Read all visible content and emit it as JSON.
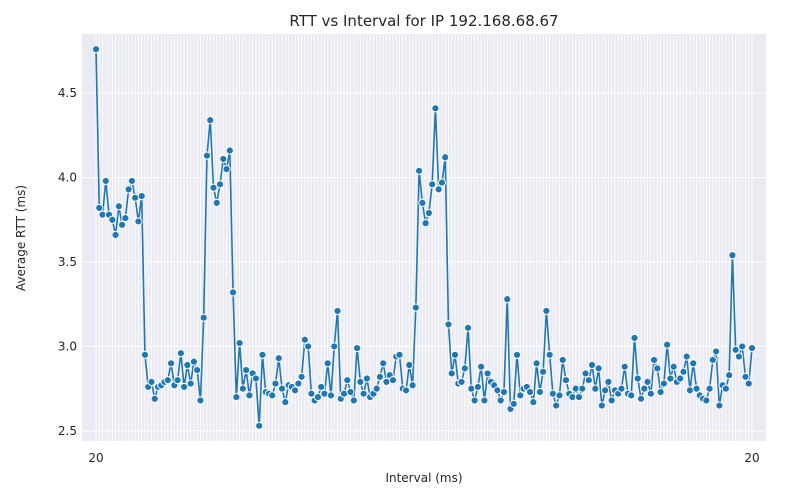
{
  "chart_data": {
    "type": "line",
    "title": "RTT vs Interval for IP 192.168.68.67",
    "xlabel": "Interval (ms)",
    "ylabel": "Average RTT (ms)",
    "ylim": [
      2.44,
      4.85
    ],
    "yticks": [
      2.5,
      3.0,
      3.5,
      4.0,
      4.5
    ],
    "ytick_labels": [
      "2.5",
      "3.0",
      "3.5",
      "4.0",
      "4.5"
    ],
    "xtick_labels_visible": [
      "20",
      "20"
    ],
    "x_categorical": true,
    "grid": true,
    "marker": "circle",
    "series_color": "#1f77b4",
    "plot_bg": "#eaeaf2",
    "series": [
      {
        "values": [
          4.76,
          3.82,
          3.78,
          3.98,
          3.78,
          3.75,
          3.66,
          3.83,
          3.72,
          3.76,
          3.93,
          3.98,
          3.88,
          3.74,
          3.89,
          2.95,
          2.76,
          2.79,
          2.69,
          2.76,
          2.77,
          2.79,
          2.8,
          2.9,
          2.77,
          2.8,
          2.96,
          2.76,
          2.89,
          2.78,
          2.91,
          2.86,
          2.68,
          3.17,
          4.13,
          4.34,
          3.94,
          3.85,
          3.96,
          4.11,
          4.05,
          4.16,
          3.32,
          2.7,
          3.02,
          2.75,
          2.86,
          2.71,
          2.84,
          2.81,
          2.53,
          2.95,
          2.73,
          2.72,
          2.71,
          2.78,
          2.93,
          2.75,
          2.67,
          2.77,
          2.76,
          2.74,
          2.78,
          2.82,
          3.04,
          3.0,
          2.72,
          2.68,
          2.7,
          2.76,
          2.72,
          2.9,
          2.71,
          3.0,
          3.21,
          2.69,
          2.72,
          2.8,
          2.73,
          2.68,
          2.99,
          2.79,
          2.72,
          2.81,
          2.7,
          2.72,
          2.75,
          2.82,
          2.9,
          2.79,
          2.83,
          2.8,
          2.94,
          2.95,
          2.75,
          2.74,
          2.89,
          2.77,
          3.23,
          4.04,
          3.85,
          3.73,
          3.79,
          3.96,
          4.41,
          3.93,
          3.97,
          4.12,
          3.13,
          2.84,
          2.95,
          2.78,
          2.79,
          2.87,
          3.11,
          2.75,
          2.68,
          2.76,
          2.88,
          2.68,
          2.84,
          2.79,
          2.77,
          2.74,
          2.68,
          2.73,
          3.28,
          2.63,
          2.66,
          2.95,
          2.71,
          2.75,
          2.76,
          2.73,
          2.67,
          2.9,
          2.73,
          2.85,
          3.21,
          2.95,
          2.72,
          2.65,
          2.71,
          2.92,
          2.8,
          2.72,
          2.7,
          2.75,
          2.7,
          2.75,
          2.84,
          2.8,
          2.89,
          2.75,
          2.87,
          2.65,
          2.74,
          2.79,
          2.68,
          2.74,
          2.72,
          2.75,
          2.88,
          2.72,
          2.71,
          3.05,
          2.81,
          2.69,
          2.75,
          2.79,
          2.72,
          2.92,
          2.87,
          2.73,
          2.78,
          3.01,
          2.81,
          2.88,
          2.79,
          2.81,
          2.85,
          2.94,
          2.74,
          2.9,
          2.75,
          2.71,
          2.69,
          2.68,
          2.75,
          2.92,
          2.97,
          2.65,
          2.77,
          2.75,
          2.83,
          3.54,
          2.98,
          2.94,
          3.0,
          2.82,
          2.78,
          2.99
        ]
      }
    ]
  }
}
